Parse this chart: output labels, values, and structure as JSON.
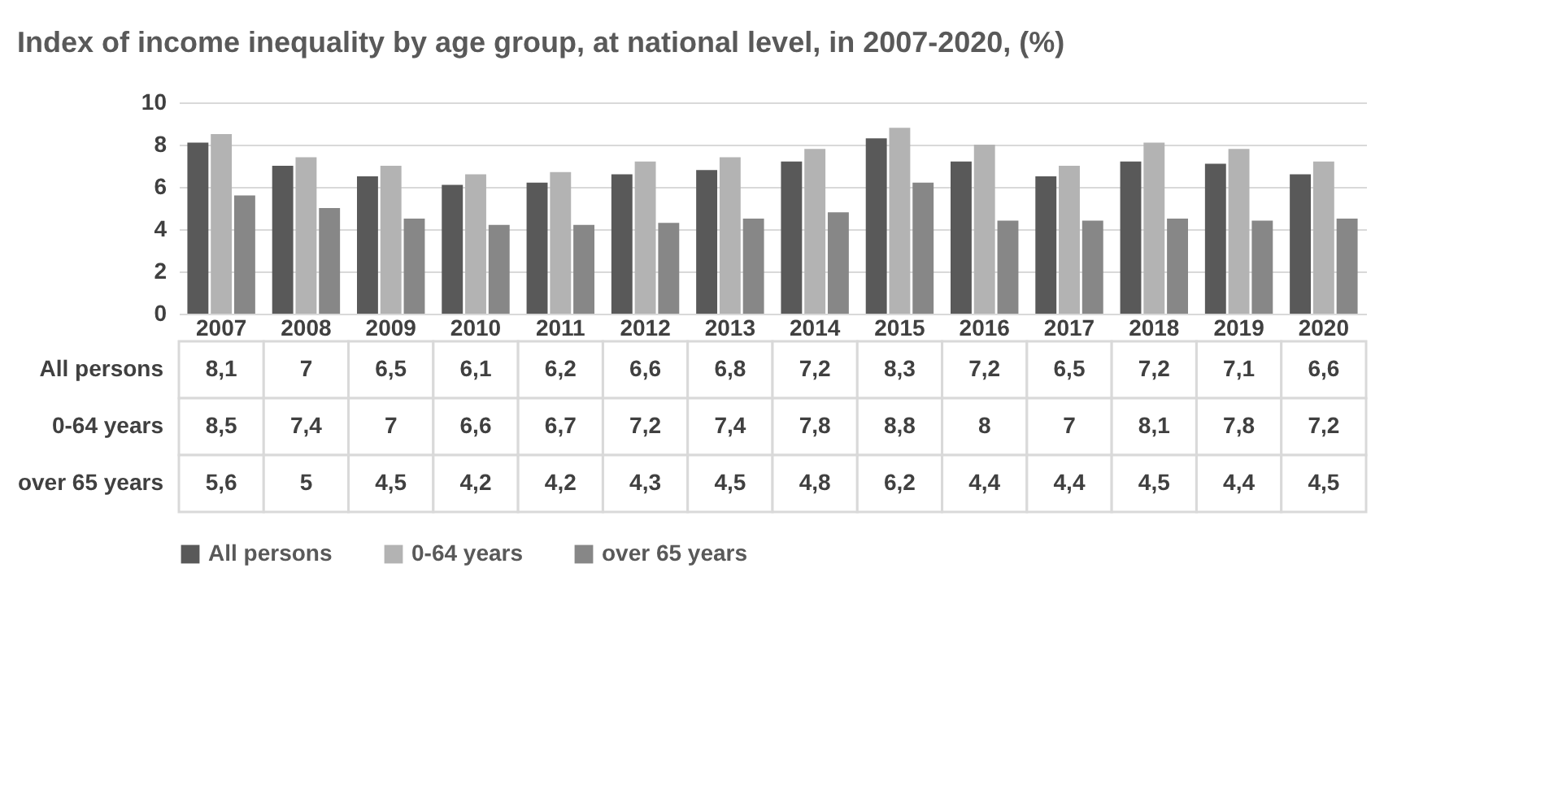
{
  "chart_data": {
    "type": "bar",
    "title": "Index of income inequality by age group, at national level, in 2007-2020, (%)",
    "categories": [
      "2007",
      "2008",
      "2009",
      "2010",
      "2011",
      "2012",
      "2013",
      "2014",
      "2015",
      "2016",
      "2017",
      "2018",
      "2019",
      "2020"
    ],
    "series": [
      {
        "name": "All persons",
        "color": "#595959",
        "values": [
          8.1,
          7,
          6.5,
          6.1,
          6.2,
          6.6,
          6.8,
          7.2,
          8.3,
          7.2,
          6.5,
          7.2,
          7.1,
          6.6
        ],
        "value_labels": [
          "8,1",
          "7",
          "6,5",
          "6,1",
          "6,2",
          "6,6",
          "6,8",
          "7,2",
          "8,3",
          "7,2",
          "6,5",
          "7,2",
          "7,1",
          "6,6"
        ]
      },
      {
        "name": "0-64 years",
        "color": "#b3b3b3",
        "values": [
          8.5,
          7.4,
          7,
          6.6,
          6.7,
          7.2,
          7.4,
          7.8,
          8.8,
          8,
          7,
          8.1,
          7.8,
          7.2
        ],
        "value_labels": [
          "8,5",
          "7,4",
          "7",
          "6,6",
          "6,7",
          "7,2",
          "7,4",
          "7,8",
          "8,8",
          "8",
          "7",
          "8,1",
          "7,8",
          "7,2"
        ]
      },
      {
        "name": "over 65 years",
        "color": "#878787",
        "values": [
          5.6,
          5,
          4.5,
          4.2,
          4.2,
          4.3,
          4.5,
          4.8,
          6.2,
          4.4,
          4.4,
          4.5,
          4.4,
          4.5
        ],
        "value_labels": [
          "5,6",
          "5",
          "4,5",
          "4,2",
          "4,2",
          "4,3",
          "4,5",
          "4,8",
          "6,2",
          "4,4",
          "4,4",
          "4,5",
          "4,4",
          "4,5"
        ]
      }
    ],
    "ylim": [
      0,
      10
    ],
    "yticks": [
      0,
      2,
      4,
      6,
      8,
      10
    ],
    "grid": "y",
    "legend": "bottom"
  }
}
